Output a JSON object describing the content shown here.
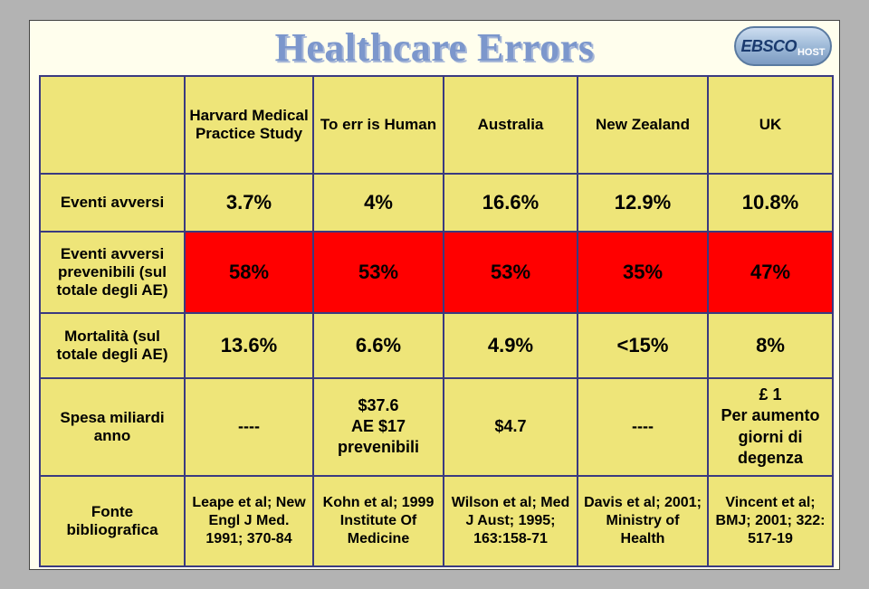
{
  "title": "Healthcare Errors",
  "logo": {
    "brand": "EBSCO",
    "sub": "HOST"
  },
  "table": {
    "type": "table",
    "background_color": "#fffeed",
    "border_color": "#3a3a80",
    "header_bg": "#eee579",
    "label_bg": "#eee579",
    "data_bg": "#eee579",
    "highlight_bg": "#ff0000",
    "text_color": "#000000",
    "header_fontsize": 17,
    "data_fontsize": 22,
    "columns": [
      "",
      "Harvard Medical Practice Study",
      "To err is Human",
      "Australia",
      "New Zealand",
      "UK"
    ],
    "rows": [
      {
        "label": "Eventi avversi",
        "cells": [
          "3.7%",
          "4%",
          "16.6%",
          "12.9%",
          "10.8%"
        ],
        "highlight": false
      },
      {
        "label": "Eventi avversi prevenibili (sul totale degli AE)",
        "cells": [
          "58%",
          "53%",
          "53%",
          "35%",
          "47%"
        ],
        "highlight": true
      },
      {
        "label": "Mortalità (sul totale degli AE)",
        "cells": [
          "13.6%",
          "6.6%",
          "4.9%",
          "<15%",
          "8%"
        ],
        "highlight": false
      },
      {
        "label": "Spesa miliardi anno",
        "cells": [
          "----",
          "$37.6\nAE $17 prevenibili",
          "$4.7",
          "----",
          "£ 1\nPer aumento giorni di degenza"
        ],
        "highlight": false
      },
      {
        "label": "Fonte bibliografica",
        "cells": [
          "Leape et al; New Engl J Med. 1991; 370-84",
          "Kohn et al; 1999 Institute Of Medicine",
          "Wilson et al; Med J Aust; 1995; 163:158-71",
          "Davis et al; 2001; Ministry of Health",
          "Vincent et al; BMJ; 2001; 322: 517-19"
        ],
        "highlight": false
      }
    ]
  }
}
